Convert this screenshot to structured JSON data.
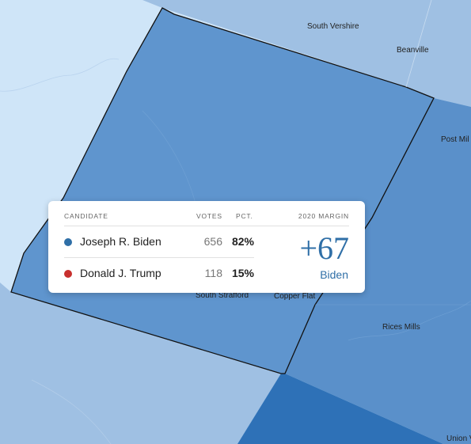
{
  "colors": {
    "background": "#cfe5f8",
    "light_county": "#9fc0e3",
    "selected_county": "#5f95ce",
    "mid_county": "#5a90ca",
    "dark_county": "#2e71b7",
    "biden": "#2f6fa7",
    "trump": "#c8302e",
    "border": "#111111"
  },
  "map": {
    "places": [
      {
        "id": "south-vershire",
        "label": "South Vershire"
      },
      {
        "id": "beanville",
        "label": "Beanville"
      },
      {
        "id": "post-mills",
        "label": "Post Mil"
      },
      {
        "id": "south-strafford",
        "label": "South Strafford"
      },
      {
        "id": "copper-flat",
        "label": "Copper Flat"
      },
      {
        "id": "rices-mills",
        "label": "Rices Mills"
      },
      {
        "id": "union-village",
        "label": "Union V"
      }
    ]
  },
  "tooltip": {
    "headers": {
      "candidate": "CANDIDATE",
      "votes": "VOTES",
      "pct": "PCT.",
      "margin": "2020 MARGIN"
    },
    "candidates": [
      {
        "name": "Joseph R. Biden",
        "votes": "656",
        "pct": "82%",
        "color": "#2f6fa7"
      },
      {
        "name": "Donald J. Trump",
        "votes": "118",
        "pct": "15%",
        "color": "#c8302e"
      }
    ],
    "margin": {
      "value": "+67",
      "winner": "Biden"
    }
  }
}
